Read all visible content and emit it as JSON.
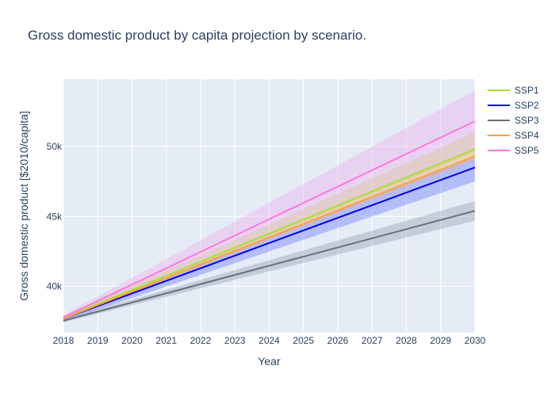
{
  "chart_data": {
    "type": "line",
    "title": "Gross domestic product by capita projection by scenario.",
    "xlabel": "Year",
    "ylabel": "Gross domestic product [$2010/capita]",
    "xlim": [
      2018,
      2030
    ],
    "ylim": [
      36700,
      54800
    ],
    "x_ticks": [
      "2018",
      "2019",
      "2020",
      "2021",
      "2022",
      "2023",
      "2024",
      "2025",
      "2026",
      "2027",
      "2028",
      "2029",
      "2030"
    ],
    "y_ticks": [
      {
        "value": 40000,
        "label": "40k"
      },
      {
        "value": 45000,
        "label": "45k"
      },
      {
        "value": 50000,
        "label": "50k"
      }
    ],
    "grid": true,
    "legend_position": "right",
    "x": [
      2018,
      2030
    ],
    "series": [
      {
        "name": "SSP1",
        "color": "#a6e22e",
        "band_color": "rgba(210,220,130,0.45)",
        "values": [
          37750,
          49800
        ],
        "lower": [
          37650,
          49300
        ],
        "upper": [
          37850,
          51000
        ]
      },
      {
        "name": "SSP2",
        "color": "#0000ee",
        "band_color": "rgba(60,80,255,0.30)",
        "values": [
          37700,
          48500
        ],
        "lower": [
          37500,
          47500
        ],
        "upper": [
          37800,
          49300
        ]
      },
      {
        "name": "SSP3",
        "color": "#6b6f78",
        "band_color": "rgba(120,130,150,0.30)",
        "values": [
          37550,
          45400
        ],
        "lower": [
          37450,
          44700
        ],
        "upper": [
          37650,
          46100
        ]
      },
      {
        "name": "SSP4",
        "color": "#ff9f40",
        "band_color": "rgba(255,170,100,0.25)",
        "values": [
          37700,
          49300
        ],
        "lower": [
          37650,
          49000
        ],
        "upper": [
          37800,
          49700
        ]
      },
      {
        "name": "SSP5",
        "color": "#ff77dd",
        "band_color": "rgba(240,150,230,0.30)",
        "values": [
          37800,
          51800
        ],
        "lower": [
          37650,
          49600
        ],
        "upper": [
          37950,
          54000
        ]
      }
    ]
  }
}
